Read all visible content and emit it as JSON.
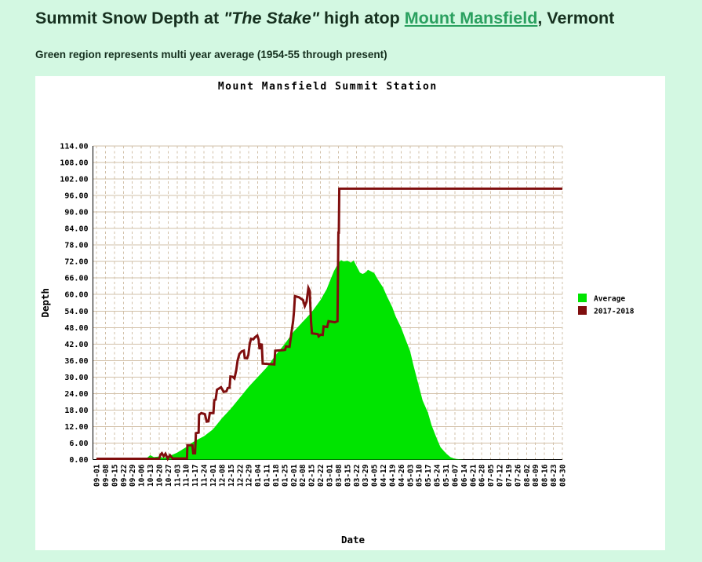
{
  "page": {
    "background": "#d3f8e2",
    "title": {
      "prefix": "Summit Snow Depth at ",
      "quoted": "\"The Stake\"",
      "middle": " high atop ",
      "link": "Mount Mansfield",
      "suffix": ", Vermont",
      "text_color": "#16301f",
      "link_color": "#2aa05f"
    },
    "subtitle": "Green region represents multi year average (1954-55 through present)"
  },
  "chart_data": {
    "type": "area",
    "title": "Mount Mansfield Summit Station",
    "xlabel": "Date",
    "ylabel": "Depth",
    "ylim": [
      0,
      114
    ],
    "ytick_step": 6,
    "grid": true,
    "legend_position": "right-of-plot",
    "colors": {
      "panel": "#ffffff",
      "grid": "#d2c0a8",
      "axis": "#000000",
      "average_fill": "#00e400",
      "season_line": "#7f0e0e"
    },
    "x_tick_labels": [
      "09-01",
      "09-08",
      "09-15",
      "09-22",
      "09-29",
      "10-06",
      "10-13",
      "10-20",
      "10-27",
      "11-03",
      "11-10",
      "11-17",
      "11-24",
      "12-01",
      "12-08",
      "12-15",
      "12-22",
      "12-29",
      "01-04",
      "01-11",
      "01-18",
      "01-25",
      "02-01",
      "02-08",
      "02-15",
      "02-22",
      "03-01",
      "03-08",
      "03-15",
      "03-22",
      "03-29",
      "04-05",
      "04-12",
      "04-19",
      "04-26",
      "05-03",
      "05-10",
      "05-17",
      "05-24",
      "05-31",
      "06-07",
      "06-14",
      "06-21",
      "06-28",
      "07-05",
      "07-12",
      "07-19",
      "07-26",
      "08-02",
      "08-09",
      "08-16",
      "08-23",
      "08-30"
    ],
    "x_unit_note": "series points are [week_index, depth_inches]; week_index 0 = 09-01, 52 = 08-30",
    "series": [
      {
        "name": "Average",
        "render": "area",
        "color": "#00e400",
        "points": [
          [
            0,
            0
          ],
          [
            2,
            0.2
          ],
          [
            3,
            0.2
          ],
          [
            4,
            0.1
          ],
          [
            5,
            0.4
          ],
          [
            5.6,
            0.5
          ],
          [
            6,
            1.6
          ],
          [
            6.4,
            0.9
          ],
          [
            7,
            1.1
          ],
          [
            7.5,
            0.6
          ],
          [
            8,
            1.1
          ],
          [
            9,
            2.5
          ],
          [
            10,
            4.5
          ],
          [
            10.6,
            6
          ],
          [
            11,
            6.8
          ],
          [
            12,
            8.5
          ],
          [
            13,
            11
          ],
          [
            14,
            15
          ],
          [
            15,
            18.5
          ],
          [
            16,
            22.5
          ],
          [
            17,
            26.5
          ],
          [
            18,
            30
          ],
          [
            19,
            33.5
          ],
          [
            20,
            38
          ],
          [
            21,
            42
          ],
          [
            22,
            46.5
          ],
          [
            23,
            50
          ],
          [
            24,
            53.5
          ],
          [
            25,
            58
          ],
          [
            25.7,
            62
          ],
          [
            26,
            64.5
          ],
          [
            26.5,
            68.5
          ],
          [
            27,
            71.5
          ],
          [
            27.3,
            72.5
          ],
          [
            27.6,
            72
          ],
          [
            28,
            72.3
          ],
          [
            28.4,
            71.6
          ],
          [
            28.7,
            72.4
          ],
          [
            29,
            70.5
          ],
          [
            29.4,
            68
          ],
          [
            29.7,
            67.5
          ],
          [
            30,
            67.9
          ],
          [
            30.3,
            69
          ],
          [
            30.6,
            68.5
          ],
          [
            31,
            67.8
          ],
          [
            31.4,
            65.5
          ],
          [
            32,
            62.5
          ],
          [
            32.4,
            59.5
          ],
          [
            33,
            55.5
          ],
          [
            33.4,
            52
          ],
          [
            34,
            48
          ],
          [
            34.4,
            44.5
          ],
          [
            35,
            39.5
          ],
          [
            35.4,
            34
          ],
          [
            36,
            26.5
          ],
          [
            36.4,
            21.5
          ],
          [
            37,
            17
          ],
          [
            37.4,
            12.5
          ],
          [
            38,
            7.5
          ],
          [
            38.4,
            4.5
          ],
          [
            39,
            2.3
          ],
          [
            39.5,
            0.9
          ],
          [
            40,
            0.3
          ],
          [
            40.5,
            0.1
          ],
          [
            41,
            0
          ],
          [
            52,
            0
          ]
        ]
      },
      {
        "name": "2017-2018",
        "render": "line",
        "color": "#7f0e0e",
        "points": [
          [
            0,
            0.3
          ],
          [
            7,
            0.3
          ],
          [
            7.15,
            1.8
          ],
          [
            7.3,
            2.3
          ],
          [
            7.5,
            1.2
          ],
          [
            7.7,
            2.1
          ],
          [
            7.95,
            0.3
          ],
          [
            8.2,
            1.6
          ],
          [
            8.5,
            0.4
          ],
          [
            10.1,
            0.4
          ],
          [
            10.15,
            5.2
          ],
          [
            10.7,
            5.2
          ],
          [
            10.8,
            2.3
          ],
          [
            11,
            2.3
          ],
          [
            11.1,
            9.6
          ],
          [
            11.4,
            9.8
          ],
          [
            11.45,
            16.3
          ],
          [
            11.7,
            16.9
          ],
          [
            12.1,
            16.5
          ],
          [
            12.3,
            13.8
          ],
          [
            12.5,
            13.9
          ],
          [
            12.65,
            16.9
          ],
          [
            13.05,
            16.9
          ],
          [
            13.15,
            21.6
          ],
          [
            13.3,
            21.8
          ],
          [
            13.45,
            25.4
          ],
          [
            13.9,
            26.3
          ],
          [
            14.2,
            24.6
          ],
          [
            14.5,
            24.8
          ],
          [
            14.65,
            26
          ],
          [
            14.85,
            26.1
          ],
          [
            14.95,
            30.2
          ],
          [
            15.2,
            30.1
          ],
          [
            15.4,
            29.5
          ],
          [
            15.6,
            32.5
          ],
          [
            15.75,
            36
          ],
          [
            15.95,
            38.4
          ],
          [
            16.2,
            39.3
          ],
          [
            16.45,
            39.6
          ],
          [
            16.55,
            36.9
          ],
          [
            16.8,
            36.8
          ],
          [
            16.95,
            38
          ],
          [
            17.1,
            42
          ],
          [
            17.25,
            43.9
          ],
          [
            17.5,
            43.7
          ],
          [
            17.7,
            44.5
          ],
          [
            17.95,
            45.1
          ],
          [
            18.1,
            43.6
          ],
          [
            18.2,
            40.1
          ],
          [
            18.3,
            41.9
          ],
          [
            18.45,
            41.8
          ],
          [
            18.55,
            34.9
          ],
          [
            19.85,
            34.6
          ],
          [
            19.95,
            39.6
          ],
          [
            20.9,
            39.8
          ],
          [
            21.05,
            39.9
          ],
          [
            21.15,
            41.1
          ],
          [
            21.55,
            41
          ],
          [
            21.75,
            45.9
          ],
          [
            21.95,
            50.4
          ],
          [
            22.05,
            54
          ],
          [
            22.15,
            59.4
          ],
          [
            22.6,
            59
          ],
          [
            23.05,
            58
          ],
          [
            23.25,
            55.8
          ],
          [
            23.45,
            57.4
          ],
          [
            23.65,
            62.4
          ],
          [
            23.8,
            61.3
          ],
          [
            23.95,
            50
          ],
          [
            24.05,
            45.9
          ],
          [
            24.7,
            45.6
          ],
          [
            24.8,
            44.8
          ],
          [
            25,
            45.4
          ],
          [
            25.25,
            45.3
          ],
          [
            25.35,
            48.4
          ],
          [
            25.75,
            48.2
          ],
          [
            25.9,
            50.3
          ],
          [
            26.6,
            49.9
          ],
          [
            26.9,
            50.3
          ],
          [
            27,
            82.5
          ],
          [
            27.05,
            82.5
          ],
          [
            27.1,
            98.5
          ],
          [
            52,
            98.5
          ]
        ]
      }
    ]
  }
}
